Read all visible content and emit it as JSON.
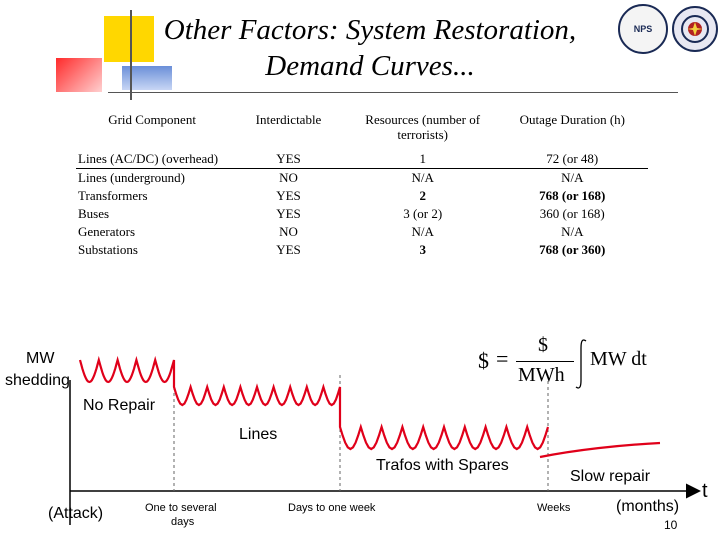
{
  "slide": {
    "title": "Other Factors: System Restoration, Demand Curves...",
    "page_number": "10",
    "logos": [
      "NPS",
      "seal"
    ]
  },
  "table": {
    "headers": [
      "Grid Component",
      "Interdictable",
      "Resources (number of terrorists)",
      "Outage Duration (h)"
    ],
    "rows": [
      {
        "component": "Lines (AC/DC) (overhead)",
        "interdictable": "YES",
        "resources": "1",
        "outage": "72 (or 48)",
        "bold": false
      },
      {
        "component": "Lines (underground)",
        "interdictable": "NO",
        "resources": "N/A",
        "outage": "N/A",
        "bold": false
      },
      {
        "component": "Transformers",
        "interdictable": "YES",
        "resources": "2",
        "outage": "768 (or 168)",
        "bold": true
      },
      {
        "component": "Buses",
        "interdictable": "YES",
        "resources": "3 (or 2)",
        "outage": "360 (or 168)",
        "bold": false
      },
      {
        "component": "Generators",
        "interdictable": "NO",
        "resources": "N/A",
        "outage": "N/A",
        "bold": false
      },
      {
        "component": "Substations",
        "interdictable": "YES",
        "resources": "3",
        "outage": "768 (or 360)",
        "bold": true
      }
    ]
  },
  "diagram": {
    "y_label_line1": "MW",
    "y_label_line2": "shedding",
    "x_axis_label": "t",
    "phase_labels": {
      "no_repair": "No Repair",
      "lines": "Lines",
      "trafos": "Trafos with Spares",
      "slow_repair": "Slow repair"
    },
    "time_labels": {
      "attack": "(Attack)",
      "one_to_several_line1": "One to several",
      "one_to_several_line2": "days",
      "days_to_week": "Days to one week",
      "weeks": "Weeks",
      "months": "(months)"
    },
    "formula": {
      "lhs": "$",
      "equals": "=",
      "numerator": "$",
      "denominator": "MWh",
      "integrand": "MW dt"
    }
  }
}
